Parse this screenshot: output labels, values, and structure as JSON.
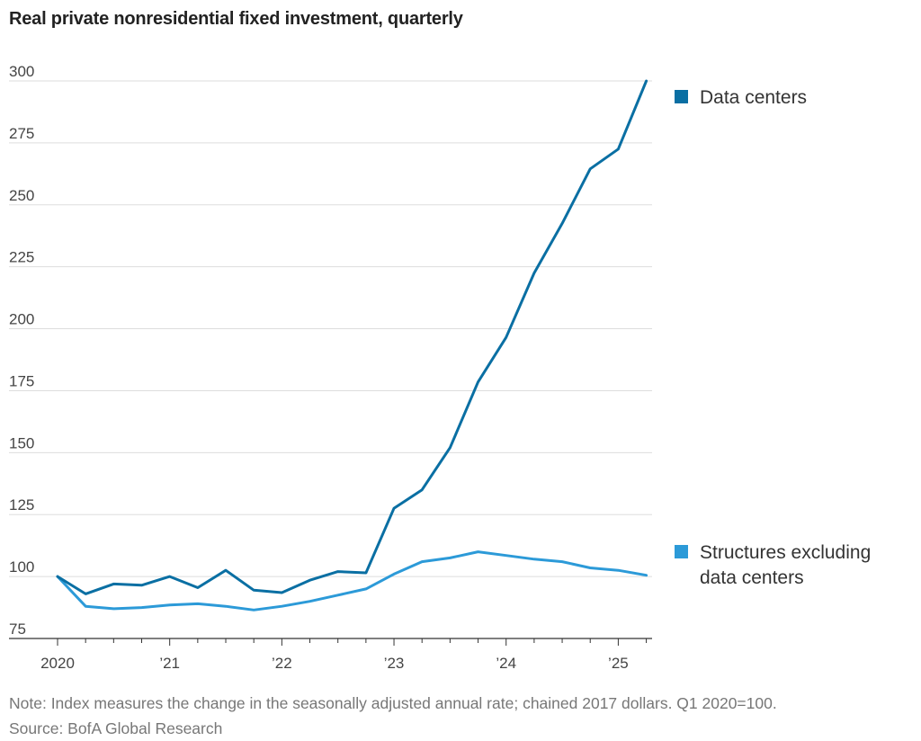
{
  "chart_data": {
    "type": "line",
    "title": "Real private nonresidential fixed investment, quarterly",
    "ylim": [
      75,
      300
    ],
    "yticks": [
      75,
      100,
      125,
      150,
      175,
      200,
      225,
      250,
      275,
      300
    ],
    "ytick_labels": [
      "75",
      "100",
      "125",
      "150",
      "175",
      "200",
      "225",
      "250",
      "275",
      "300"
    ],
    "xticks": [
      {
        "q": 0,
        "label": "2020"
      },
      {
        "q": 4,
        "label": "’21"
      },
      {
        "q": 8,
        "label": "’22"
      },
      {
        "q": 12,
        "label": "’23"
      },
      {
        "q": 16,
        "label": "’24"
      },
      {
        "q": 20,
        "label": "’25"
      }
    ],
    "x": [
      "2020Q1",
      "2020Q2",
      "2020Q3",
      "2020Q4",
      "2021Q1",
      "2021Q2",
      "2021Q3",
      "2021Q4",
      "2022Q1",
      "2022Q2",
      "2022Q3",
      "2022Q4",
      "2023Q1",
      "2023Q2",
      "2023Q3",
      "2023Q4",
      "2024Q1",
      "2024Q2",
      "2024Q3",
      "2024Q4",
      "2025Q1",
      "2025Q2"
    ],
    "grid": true,
    "legend_position": "right",
    "series": [
      {
        "name": "Data centers",
        "legend_lines": [
          "Data centers"
        ],
        "color": "#0a6fa3",
        "values": [
          100,
          93,
          97,
          96.5,
          100,
          95.5,
          102.5,
          94.5,
          93.5,
          98.5,
          102,
          101.5,
          127.5,
          135,
          152,
          178.5,
          196.5,
          222.5,
          242.5,
          264.5,
          272.5,
          300
        ]
      },
      {
        "name": "Structures excluding data centers",
        "legend_lines": [
          "Structures excluding",
          "data centers"
        ],
        "color": "#2c9ad8",
        "values": [
          100,
          88,
          87,
          87.5,
          88.5,
          89,
          88,
          86.5,
          88,
          90,
          92.5,
          95,
          101,
          106,
          107.5,
          110,
          108.5,
          107,
          106,
          103.5,
          102.5,
          100.5
        ]
      }
    ]
  },
  "note": "Note: Index measures the change in the seasonally adjusted annual rate; chained 2017 dollars. Q1 2020=100.",
  "source": "Source: BofA Global Research"
}
